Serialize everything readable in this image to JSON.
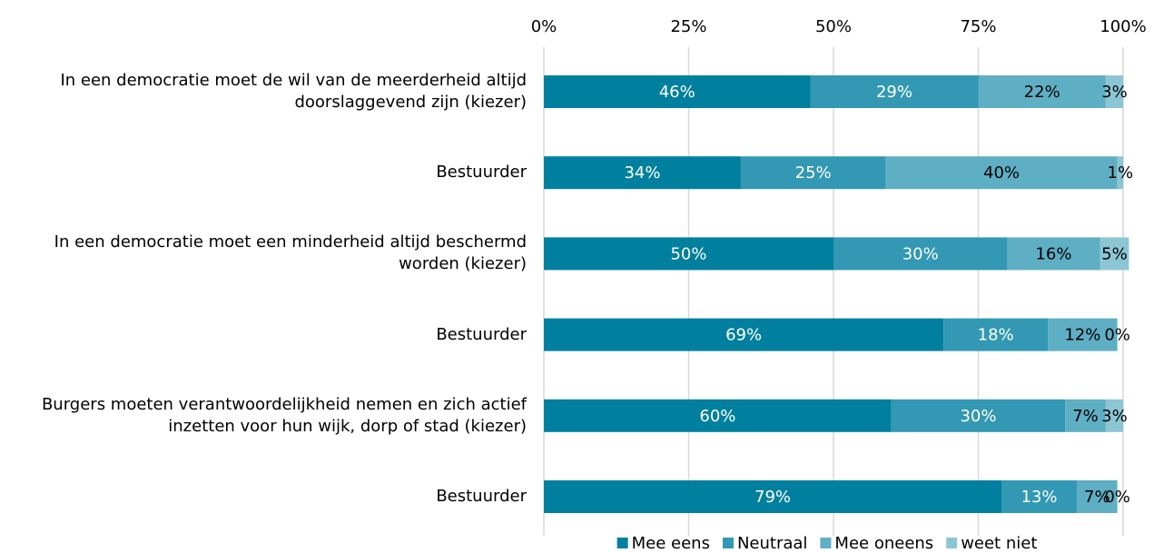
{
  "chart_data": {
    "type": "stacked-barh",
    "categories": [
      "In een democratie moet de wil van de meerderheid altijd doorslaggevend zijn (kiezer)",
      "Bestuurder",
      "In een democratie moet een minderheid altijd beschermd worden (kiezer)",
      "Bestuurder",
      "Burgers moeten verantwoordelijkheid nemen en zich actief inzetten voor hun wijk, dorp of stad (kiezer)",
      "Bestuurder"
    ],
    "series": [
      {
        "name": "Mee eens",
        "color": "#00809e",
        "label_color": "#ffffff",
        "values": [
          46,
          34,
          50,
          69,
          60,
          79
        ],
        "value_labels": [
          "46%",
          "34%",
          "50%",
          "69%",
          "60%",
          "79%"
        ]
      },
      {
        "name": "Neutraal",
        "color": "#3298b4",
        "label_color": "#ffffff",
        "values": [
          29,
          25,
          30,
          18,
          30,
          13
        ],
        "value_labels": [
          "29%",
          "25%",
          "30%",
          "18%",
          "30%",
          "13%"
        ]
      },
      {
        "name": "Mee oneens",
        "color": "#5eafc4",
        "label_color": "#000000",
        "values": [
          22,
          40,
          16,
          12,
          7,
          7
        ],
        "value_labels": [
          "22%",
          "40%",
          "16%",
          "12%",
          "7%",
          "7%"
        ]
      },
      {
        "name": "weet niet",
        "color": "#8cc6d5",
        "label_color": "#000000",
        "values": [
          3,
          1,
          5,
          0,
          3,
          0
        ],
        "value_labels": [
          "3%",
          "1%",
          "5%",
          "0%",
          "3%",
          "0%"
        ]
      }
    ],
    "xlim": [
      0,
      100
    ],
    "xticks": [
      {
        "value": 0,
        "label": "0%"
      },
      {
        "value": 25,
        "label": "25%"
      },
      {
        "value": 50,
        "label": "50%"
      },
      {
        "value": 75,
        "label": "75%"
      },
      {
        "value": 100,
        "label": "100%"
      }
    ],
    "grid": true,
    "legend": "bottom"
  }
}
